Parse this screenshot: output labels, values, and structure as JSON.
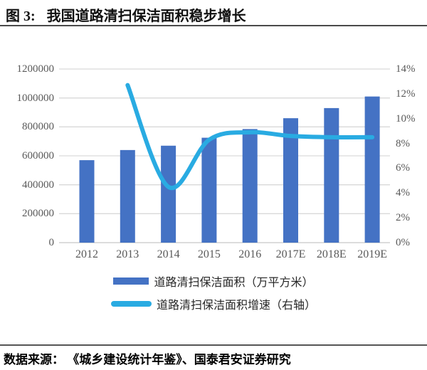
{
  "header": {
    "figure_label": "图 3:",
    "title": "我国道路清扫保洁面积稳步增长"
  },
  "chart_data": {
    "type": "bar",
    "subtype": "bar+line combo, dual axis",
    "categories": [
      "2012",
      "2013",
      "2014",
      "2015",
      "2016",
      "2017E",
      "2018E",
      "2019E"
    ],
    "series": [
      {
        "name": "道路清扫保洁面积（万平方米）",
        "type": "bar",
        "axis": "left",
        "color": "#4472C4",
        "values": [
          570000,
          640000,
          670000,
          725000,
          785000,
          860000,
          930000,
          1010000
        ]
      },
      {
        "name": "道路清扫保洁面积增速（右轴）",
        "type": "line",
        "axis": "right",
        "unit": "%",
        "color": "#29ABE2",
        "values": [
          null,
          12.7,
          4.5,
          8.3,
          8.9,
          8.6,
          8.5,
          8.5
        ]
      }
    ],
    "left_axis": {
      "min": 0,
      "max": 1200000,
      "step": 200000,
      "ticks": [
        "1200000",
        "1000000",
        "800000",
        "600000",
        "400000",
        "200000",
        "0"
      ]
    },
    "right_axis": {
      "min": 0,
      "max": 14,
      "step": 2,
      "ticks": [
        "14%",
        "12%",
        "10%",
        "8%",
        "6%",
        "4%",
        "2%",
        "0%"
      ]
    },
    "grid": true,
    "legend_position": "bottom"
  },
  "footer": {
    "source": "数据来源： 《城乡建设统计年鉴》、国泰君安证券研究"
  },
  "colors": {
    "bar": "#4472C4",
    "line": "#29ABE2",
    "grid": "#D9D9D9",
    "axis_line": "#C6C6C6",
    "tick_label": "#595959"
  }
}
